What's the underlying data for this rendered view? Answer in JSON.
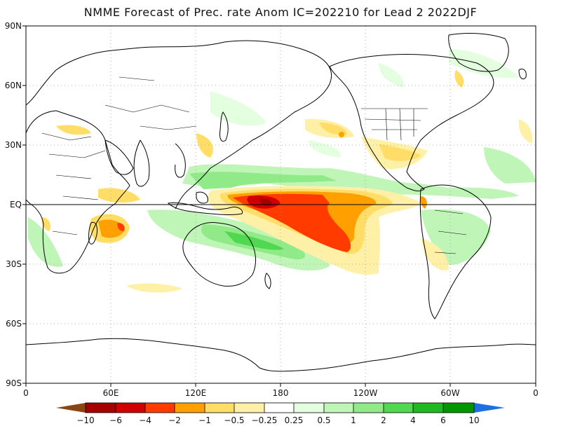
{
  "title": "NMME Forecast of Prec. rate Anom IC=202210 for Lead 2 2022DJF",
  "y_axis_labels": [
    "90N",
    "60N",
    "30N",
    "EQ",
    "30S",
    "60S",
    "90S"
  ],
  "x_axis_labels": [
    "0",
    "60E",
    "120E",
    "180",
    "120W",
    "60W",
    "0"
  ],
  "colorbar": {
    "labels": [
      "−10",
      "−6",
      "−4",
      "−2",
      "−1",
      "−0.5",
      "−0.25",
      "0.25",
      "0.5",
      "1",
      "2",
      "4",
      "6",
      "10"
    ],
    "colors": [
      "#8b4513",
      "#a50000",
      "#d00000",
      "#ff3b00",
      "#ffa000",
      "#ffdd66",
      "#fff0a8",
      "#ffffff",
      "#e4ffe0",
      "#c0f5b8",
      "#90ea88",
      "#50d850",
      "#20b820",
      "#009600",
      "#1e6fe0"
    ]
  },
  "map": {
    "lat_range": [
      -90,
      90
    ],
    "lon_range": [
      0,
      360
    ]
  }
}
